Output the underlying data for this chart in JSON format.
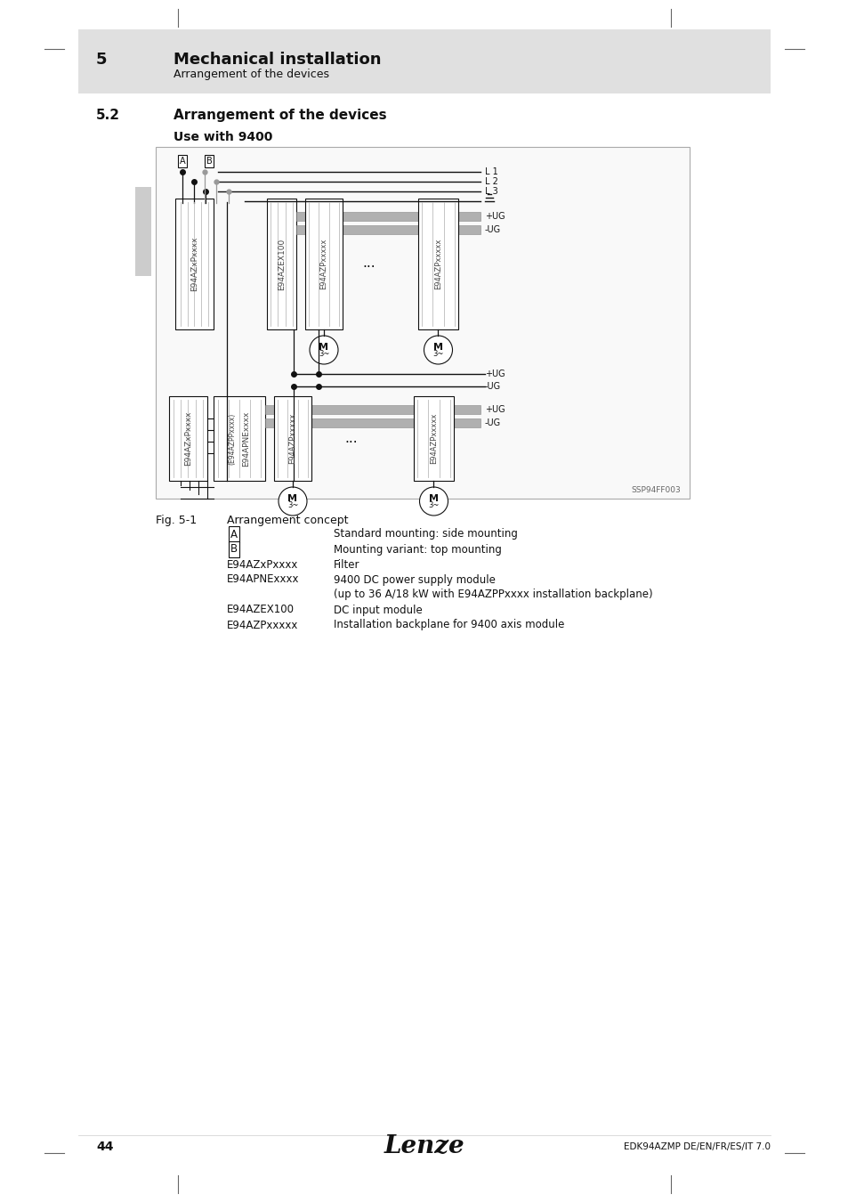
{
  "page_bg": "#ffffff",
  "header_bg": "#e0e0e0",
  "header_number": "5",
  "header_title": "Mechanical installation",
  "header_subtitle": "Arrangement of the devices",
  "section_number": "5.2",
  "section_title": "Arrangement of the devices",
  "subsection_title": "Use with 9400",
  "fig_label": "Fig. 5-1",
  "fig_caption": "Arrangement concept",
  "footer_page": "44",
  "footer_logo": "Lenze",
  "footer_doc": "EDK94AZMP DE/EN/FR/ES/IT 7.0",
  "diagram_ref": "SSP94FF003",
  "legend": [
    {
      "sym": "A",
      "boxed": true,
      "desc": "Standard mounting: side mounting"
    },
    {
      "sym": "B",
      "boxed": true,
      "desc": "Mounting variant: top mounting"
    },
    {
      "sym": "E94AZxPxxxx",
      "boxed": false,
      "desc": "Filter"
    },
    {
      "sym": "E94APNExxxx",
      "boxed": false,
      "desc": "9400 DC power supply module"
    },
    {
      "sym": "",
      "boxed": false,
      "desc": "(up to 36 A/18 kW with E94AZPPxxxx installation backplane)"
    },
    {
      "sym": "E94AZEX100",
      "boxed": false,
      "desc": "DC input module"
    },
    {
      "sym": "E94AZPxxxxx",
      "boxed": false,
      "desc": "Installation backplane for 9400 axis module"
    }
  ]
}
